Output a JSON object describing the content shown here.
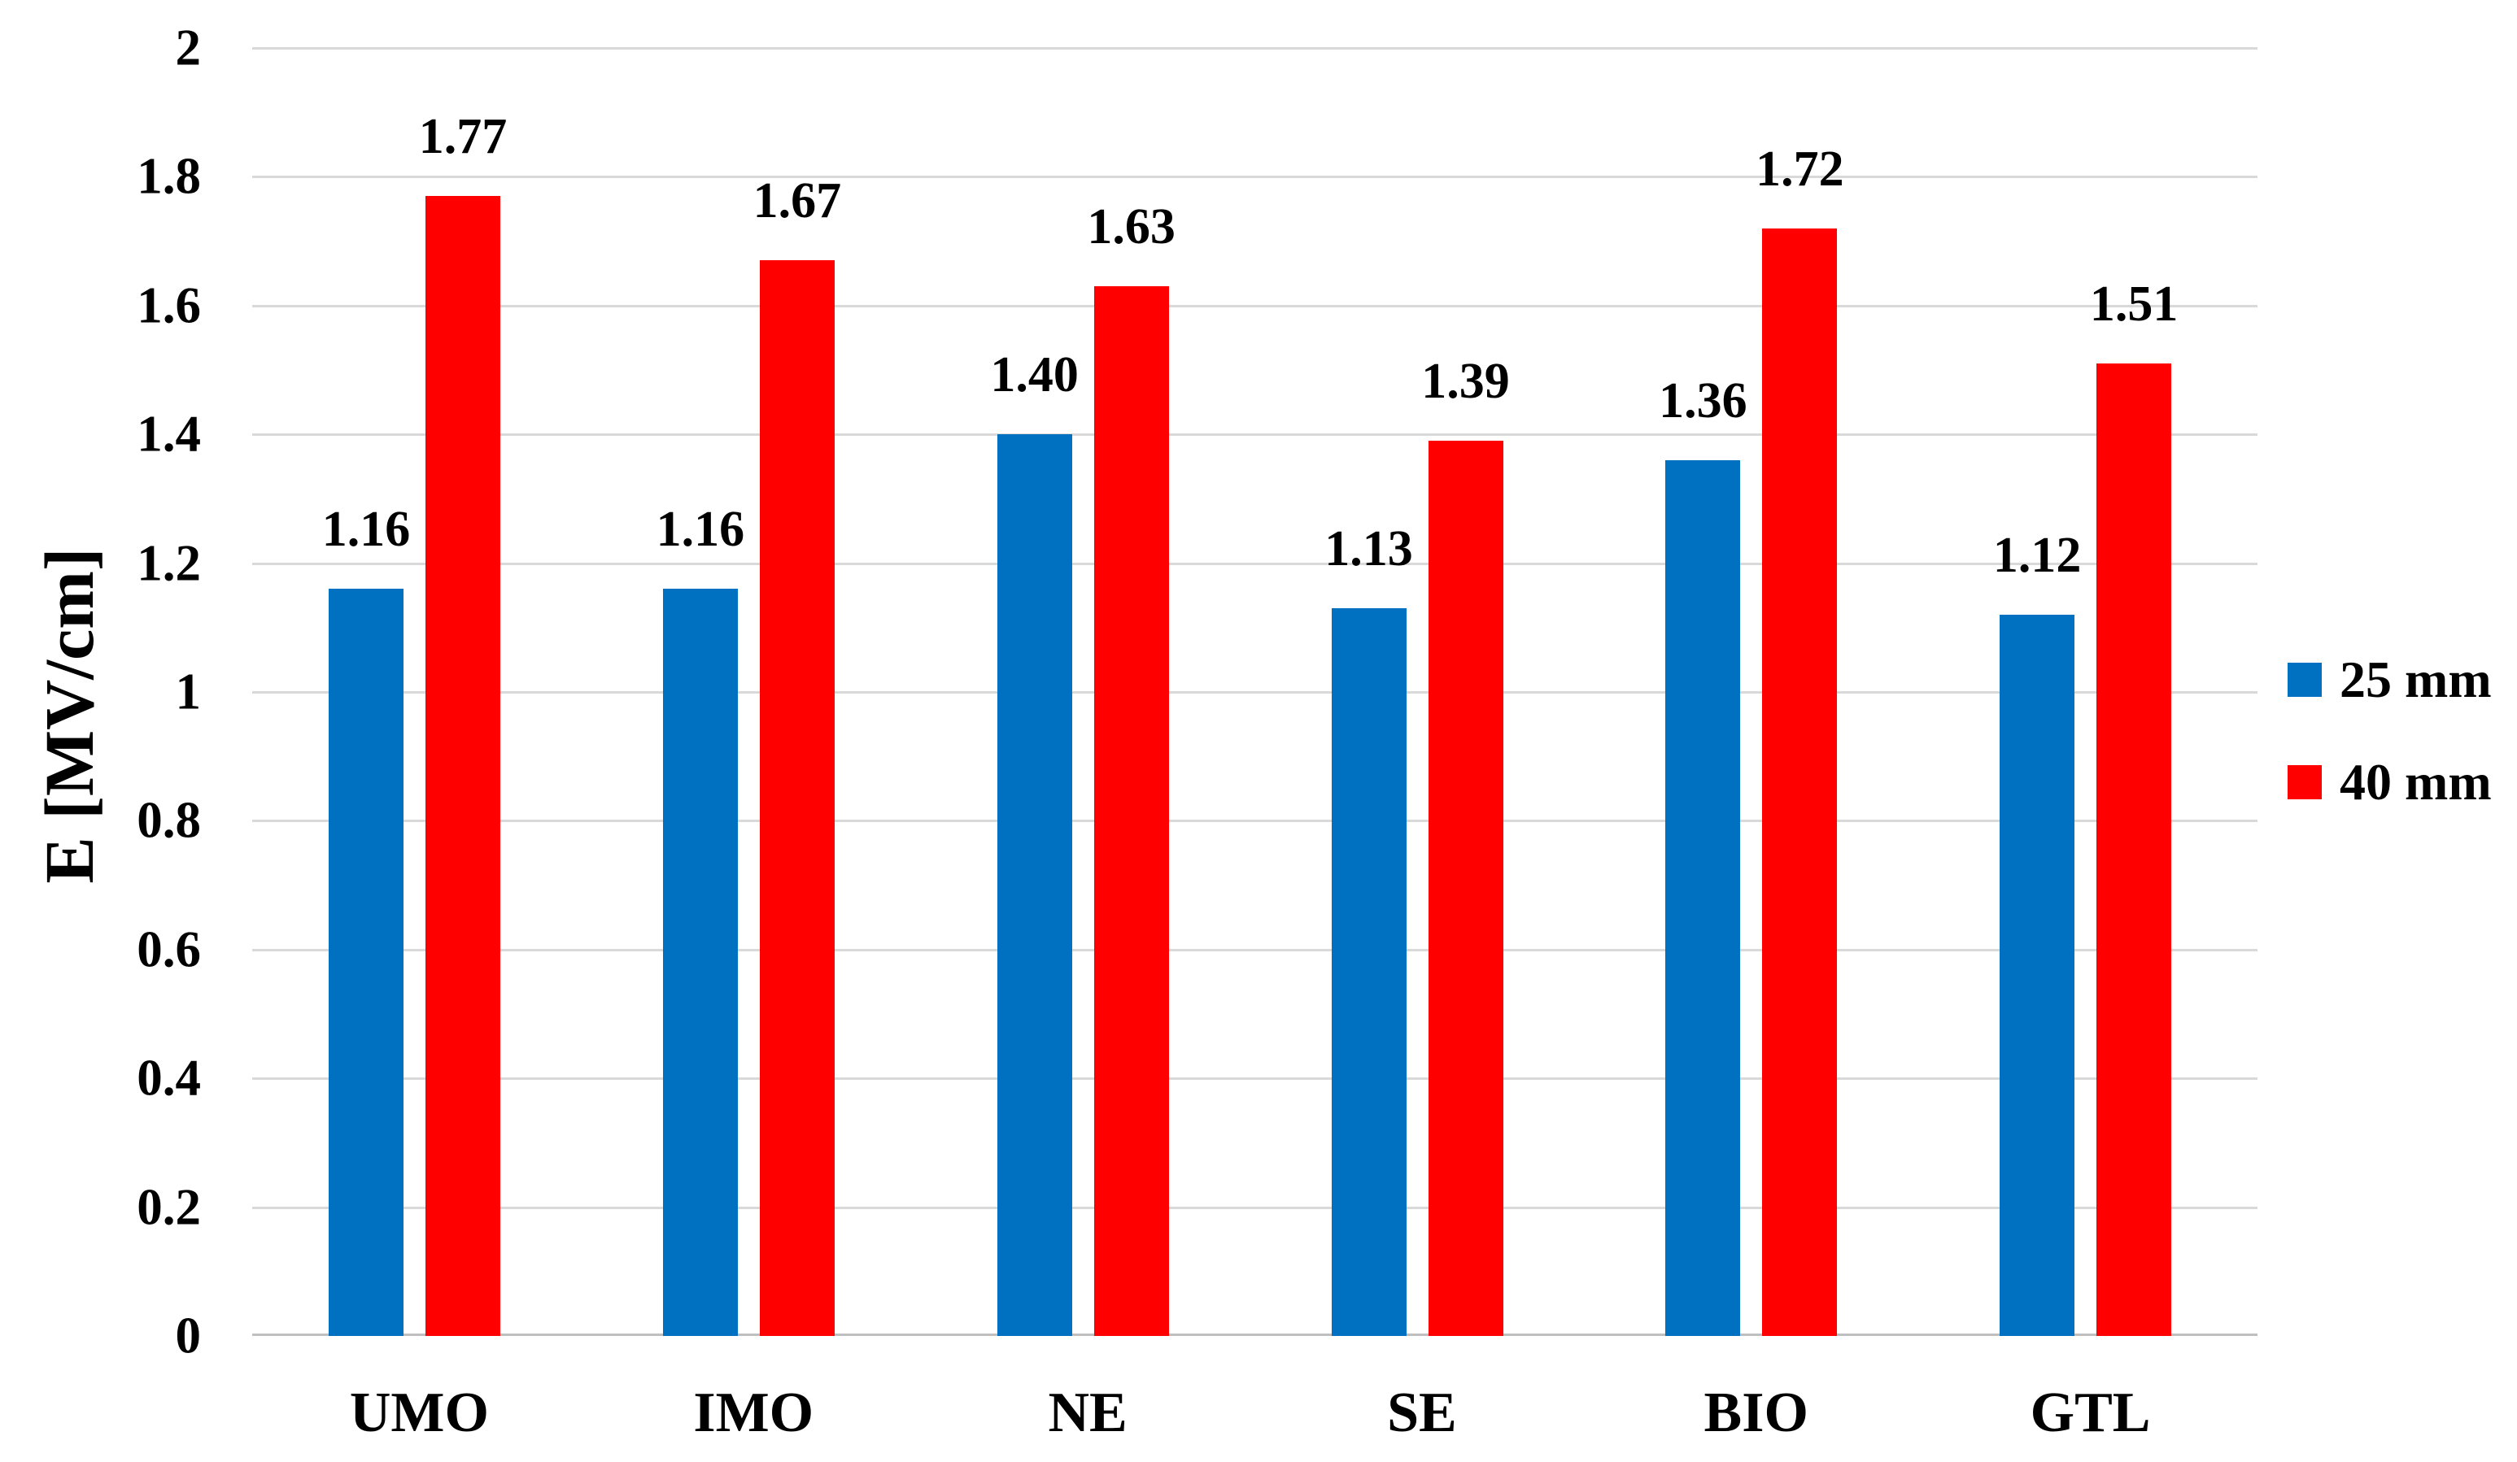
{
  "chart_data": {
    "type": "bar",
    "categories": [
      "UMO",
      "IMO",
      "NE",
      "SE",
      "BIO",
      "GTL"
    ],
    "series": [
      {
        "name": "25 mm",
        "color": "#0071C1",
        "values": [
          1.16,
          1.16,
          1.4,
          1.13,
          1.36,
          1.12
        ],
        "labels": [
          "1.16",
          "1.16",
          "1.40",
          "1.13",
          "1.36",
          "1.12"
        ]
      },
      {
        "name": "40 mm",
        "color": "#FF0000",
        "values": [
          1.77,
          1.67,
          1.63,
          1.39,
          1.72,
          1.51
        ],
        "labels": [
          "1.77",
          "1.67",
          "1.63",
          "1.39",
          "1.72",
          "1.51"
        ]
      }
    ],
    "ylabel": "E [MV/cm]",
    "ylim": [
      0,
      2
    ],
    "ytick_step": 0.2,
    "yticks": [
      "2",
      "1.8",
      "1.6",
      "1.4",
      "1.2",
      "1",
      "0.8",
      "0.6",
      "0.4",
      "0.2",
      "0"
    ],
    "grid": true,
    "legend_position": "right",
    "colors": {
      "grid": "#D9D9D9",
      "axis_line": "#BFBFBF",
      "text": "#000000",
      "background": "#FFFFFF"
    }
  }
}
